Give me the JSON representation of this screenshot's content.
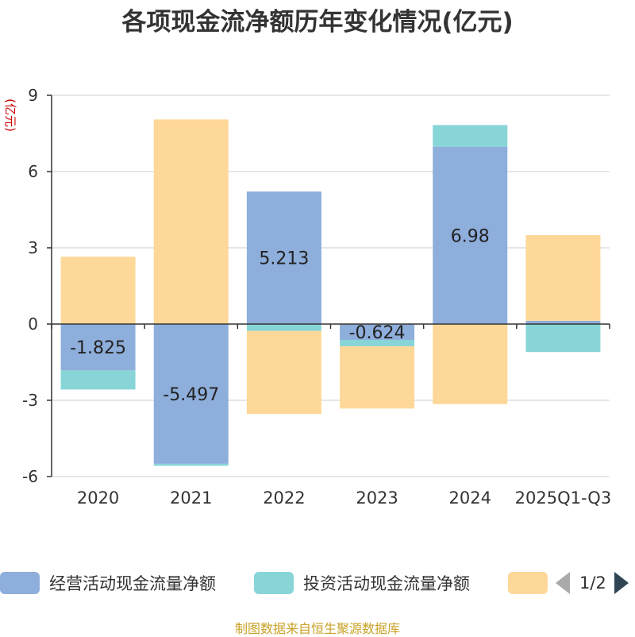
{
  "title": "各项现金流净额历年变化情况(亿元)",
  "source": "制图数据来自恒生聚源数据库",
  "colors": {
    "operating": "#8eaedb",
    "investing": "#88d5d8",
    "financing": "#fed898",
    "axis": "#333333",
    "grid": "#cccccc",
    "unit_label": "#cc0000"
  },
  "legend": {
    "items": [
      {
        "label": "经营活动现金流量净额",
        "color": "#8eaedb"
      },
      {
        "label": "投资活动现金流量净额",
        "color": "#88d5d8"
      },
      {
        "label": "",
        "color": "#fed898"
      }
    ],
    "page_indicator": "1/2",
    "prev_icon": "arrow-left-icon",
    "next_icon": "arrow-right-icon"
  },
  "chart_data": {
    "type": "bar",
    "stacked": true,
    "ylabel": "(亿元)",
    "ylim": [
      -6,
      9
    ],
    "yticks": [
      -6,
      -3,
      0,
      3,
      6,
      9
    ],
    "grid": true,
    "categories": [
      "2020",
      "2021",
      "2022",
      "2023",
      "2024",
      "2025Q1-Q3"
    ],
    "series": [
      {
        "name": "经营活动现金流量净额",
        "values": [
          -1.825,
          -5.497,
          5.213,
          -0.624,
          6.98,
          0.13
        ],
        "labels": [
          "-1.825",
          "-5.497",
          "5.213",
          "-0.624",
          "6.98",
          ""
        ]
      },
      {
        "name": "投资活动现金流量净额",
        "values": [
          -0.75,
          -0.08,
          -0.27,
          -0.25,
          0.85,
          -1.1
        ]
      },
      {
        "name": "",
        "values": [
          2.65,
          8.05,
          -3.27,
          -2.45,
          -3.15,
          3.37
        ]
      }
    ]
  }
}
